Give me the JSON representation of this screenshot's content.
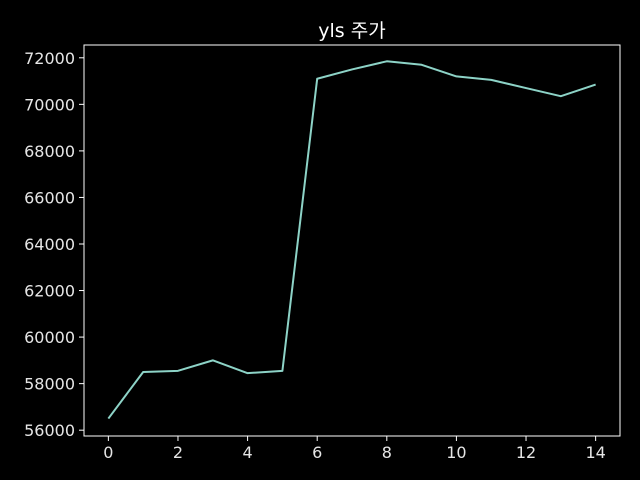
{
  "chart_data": {
    "type": "line",
    "title": "yls 주가",
    "xlabel": "",
    "ylabel": "",
    "x": [
      0,
      1,
      2,
      3,
      4,
      5,
      6,
      7,
      8,
      9,
      10,
      11,
      12,
      13,
      14
    ],
    "series": [
      {
        "values": [
          56500,
          58500,
          58550,
          59000,
          58450,
          58550,
          71100,
          71500,
          71850,
          71700,
          71200,
          71050,
          70700,
          70350,
          70850
        ],
        "color": "#8dd3c7"
      }
    ],
    "xlim": [
      -0.7,
      14.7
    ],
    "ylim": [
      55750,
      72550
    ],
    "xticks": [
      0,
      2,
      4,
      6,
      8,
      10,
      12,
      14
    ],
    "yticks": [
      56000,
      58000,
      60000,
      62000,
      64000,
      66000,
      68000,
      70000,
      72000
    ],
    "xtick_labels": [
      "0",
      "2",
      "4",
      "6",
      "8",
      "10",
      "12",
      "14"
    ],
    "ytick_labels": [
      "56000",
      "58000",
      "60000",
      "62000",
      "64000",
      "66000",
      "68000",
      "70000",
      "72000"
    ],
    "grid": false,
    "legend": "none",
    "background": "#000000",
    "axis_color": "#ffffff",
    "text_color": "#e6e6e6"
  }
}
